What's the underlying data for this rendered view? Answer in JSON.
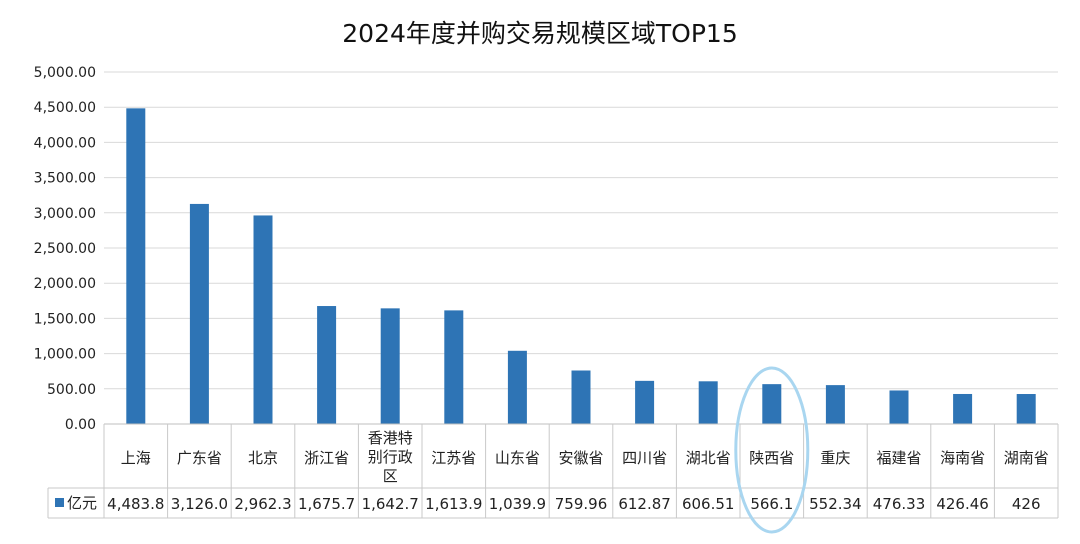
{
  "chart_data": {
    "type": "bar",
    "title": "2024年度并购交易规模区域TOP15",
    "categories": [
      "上海",
      "广东省",
      "北京",
      "浙江省",
      "香港特别行政区",
      "江苏省",
      "山东省",
      "安徽省",
      "四川省",
      "湖北省",
      "陕西省",
      "重庆",
      "福建省",
      "海南省",
      "湖南省"
    ],
    "category_lines": [
      [
        "上海"
      ],
      [
        "广东省"
      ],
      [
        "北京"
      ],
      [
        "浙江省"
      ],
      [
        "香港特",
        "别行政",
        "区"
      ],
      [
        "江苏省"
      ],
      [
        "山东省"
      ],
      [
        "安徽省"
      ],
      [
        "四川省"
      ],
      [
        "湖北省"
      ],
      [
        "陕西省"
      ],
      [
        "重庆"
      ],
      [
        "福建省"
      ],
      [
        "海南省"
      ],
      [
        "湖南省"
      ]
    ],
    "series": [
      {
        "name": "亿元",
        "color": "#2e74b5",
        "values": [
          4483.8,
          3126.0,
          2962.3,
          1675.7,
          1642.7,
          1613.9,
          1039.9,
          759.96,
          612.87,
          606.51,
          566.1,
          552.34,
          476.33,
          426.46,
          426
        ],
        "table_labels": [
          "4,483.8",
          "3,126.0",
          "2,962.3",
          "1,675.7",
          "1,642.7",
          "1,613.9",
          "1,039.9",
          "759.96",
          "612.87",
          "606.51",
          "566.1",
          "552.34",
          "476.33",
          "426.46",
          "426"
        ]
      }
    ],
    "ylim": [
      0,
      5000
    ],
    "yticks": [
      0,
      500,
      1000,
      1500,
      2000,
      2500,
      3000,
      3500,
      4000,
      4500,
      5000
    ],
    "ytick_labels": [
      "0.00",
      "500.00",
      "1,000.00",
      "1,500.00",
      "2,000.00",
      "2,500.00",
      "3,000.00",
      "3,500.00",
      "4,000.00",
      "4,500.00",
      "5,000.00"
    ],
    "xlabel": "",
    "ylabel": "",
    "grid": true,
    "data_table": true,
    "highlight": {
      "category": "陕西省",
      "shape": "ellipse",
      "color": "#a9d6f0"
    }
  }
}
